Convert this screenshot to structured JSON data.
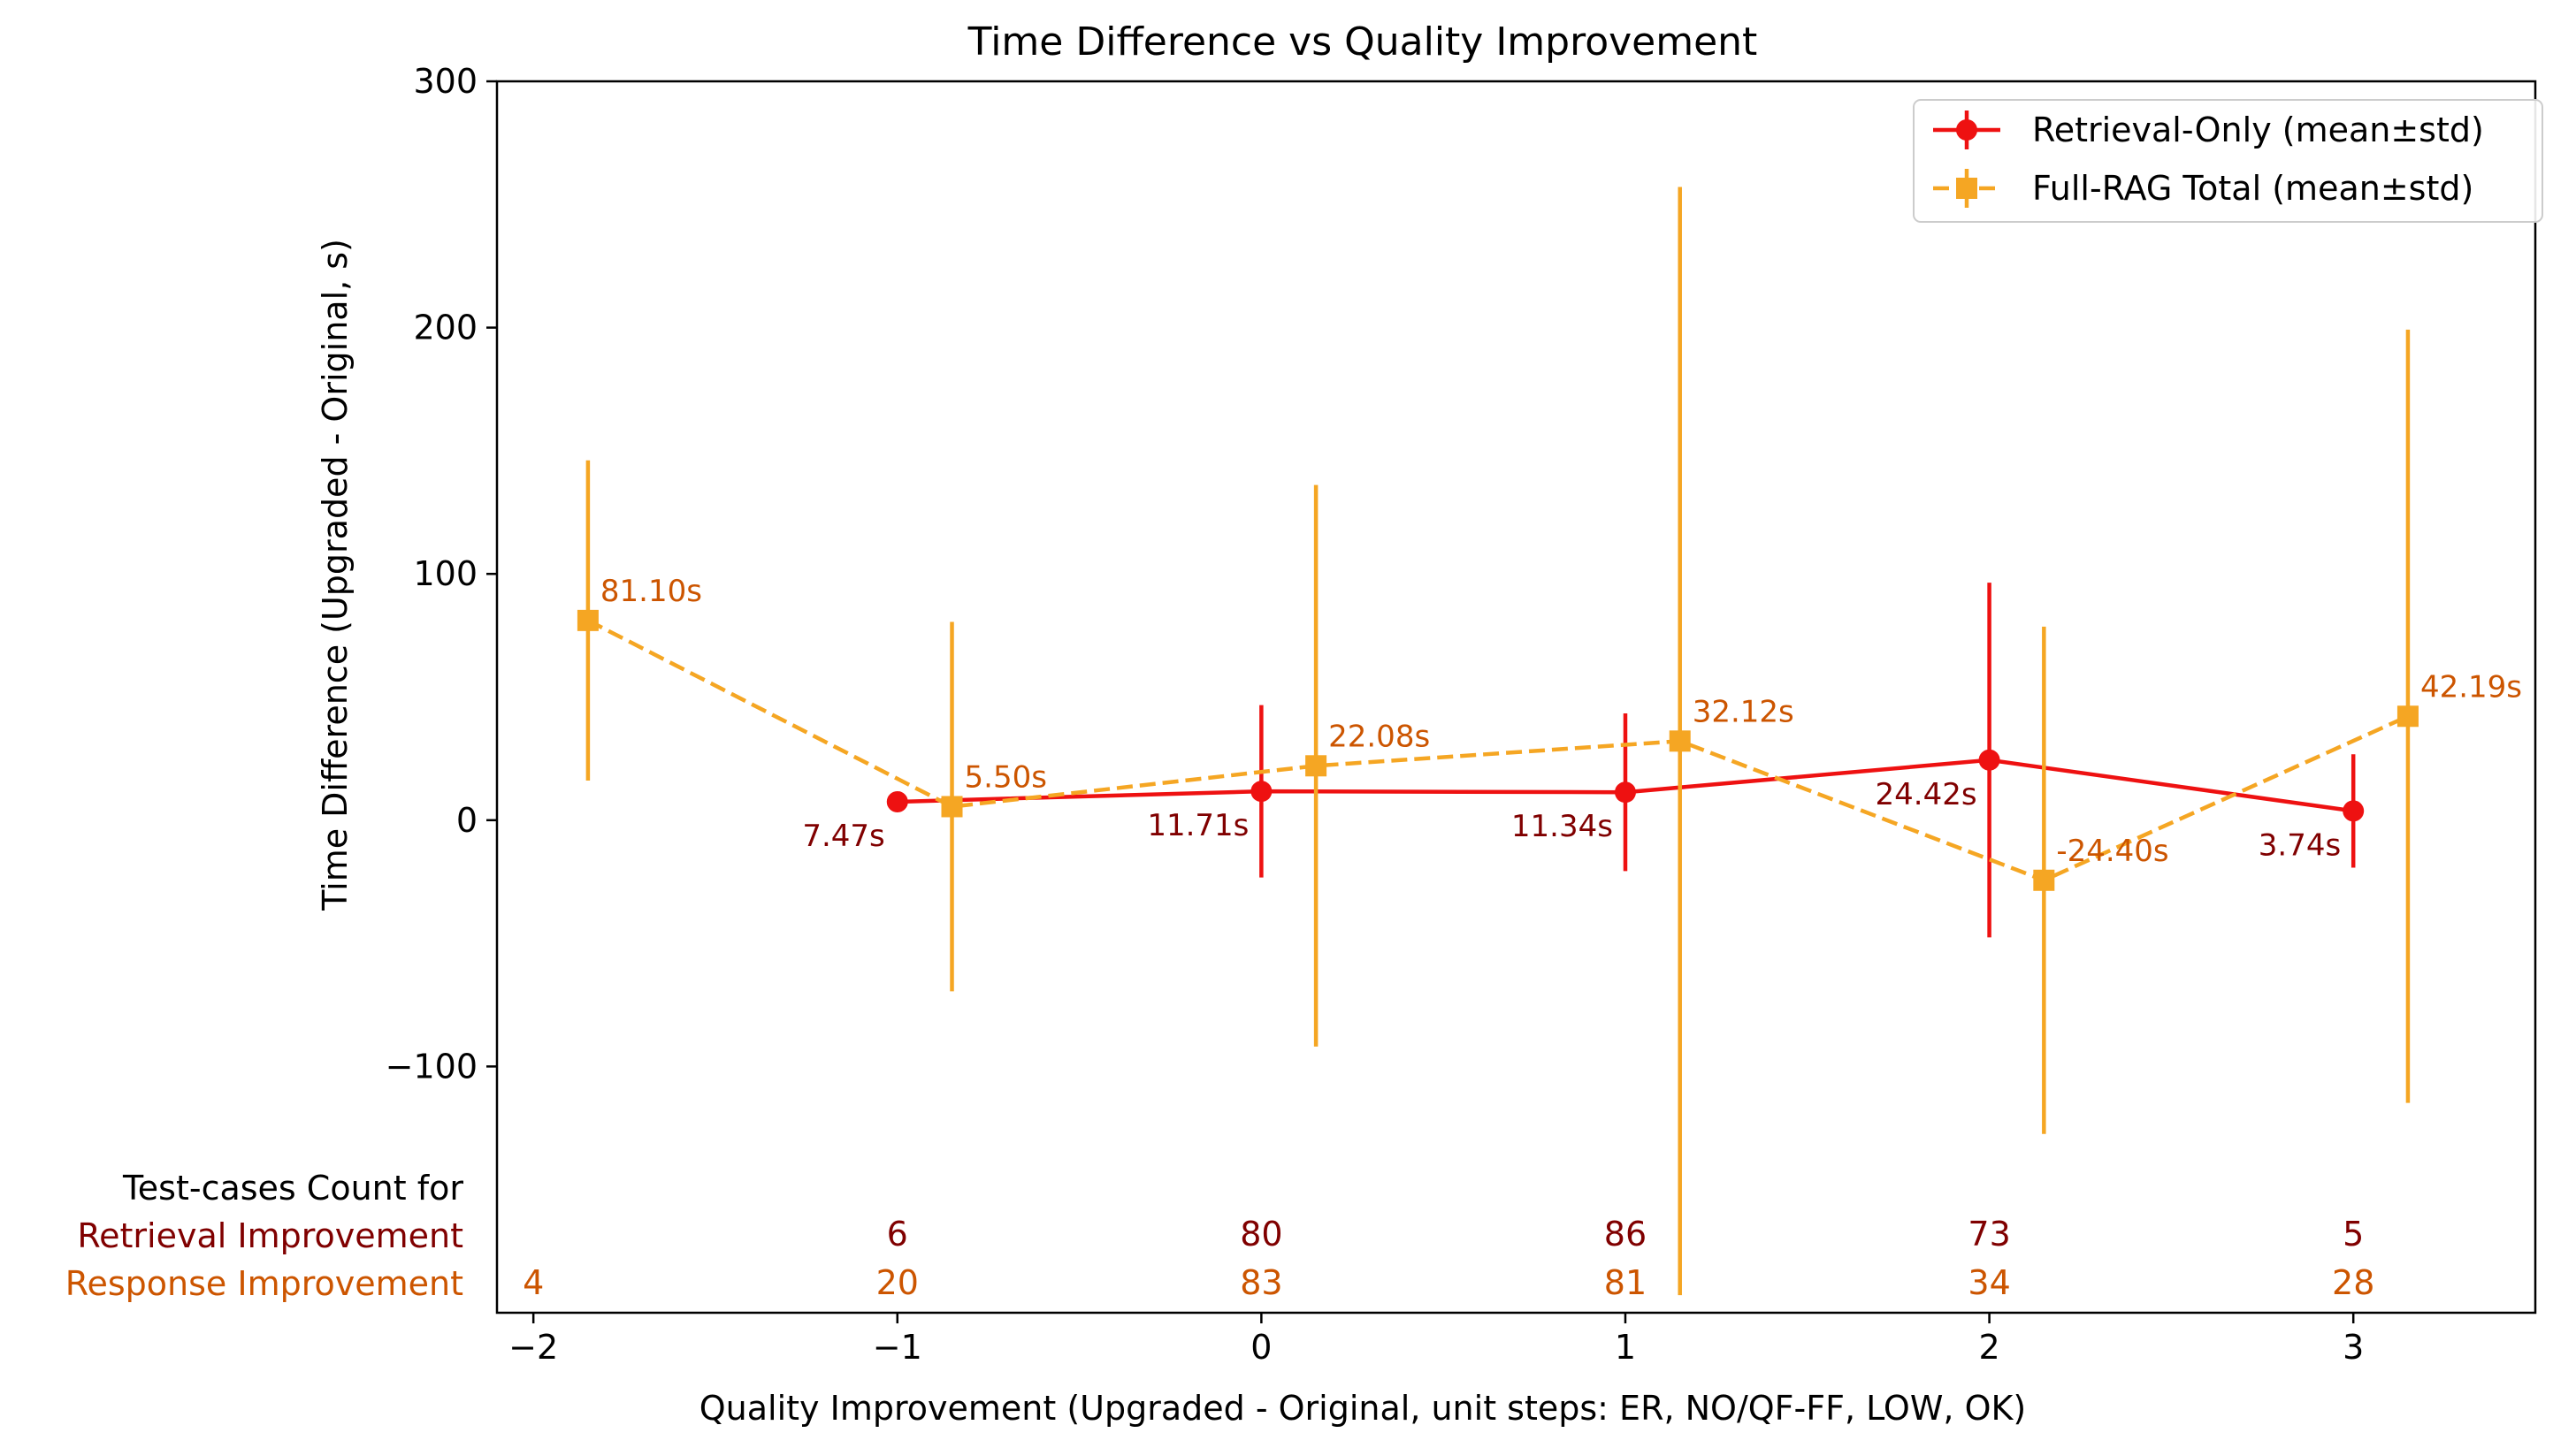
{
  "chart_data": {
    "type": "line",
    "title": "Time Difference vs Quality Improvement",
    "xlabel": "Quality Improvement (Upgraded - Original, unit steps: ER, NO/QF-FF, LOW, OK)",
    "ylabel": "Time Difference (Upgraded - Original, s)",
    "xlim": [
      -2.1,
      3.5
    ],
    "ylim": [
      -200,
      300
    ],
    "x_ticks": [
      -2,
      -1,
      0,
      1,
      2,
      3
    ],
    "x_tick_labels": [
      "−2",
      "−1",
      "0",
      "1",
      "2",
      "3"
    ],
    "y_ticks": [
      -100,
      0,
      100,
      200,
      300
    ],
    "y_tick_labels": [
      "−100",
      "0",
      "100",
      "200",
      "300"
    ],
    "grid": false,
    "legend_position": "top-right",
    "series": [
      {
        "name": "Retrieval-Only (mean±std)",
        "color": "#ee1111",
        "marker": "circle",
        "line_style": "solid",
        "x": [
          -1,
          0,
          1,
          2,
          3
        ],
        "mean": [
          7.47,
          11.71,
          11.34,
          24.42,
          3.74
        ],
        "std": [
          0,
          35,
          32,
          72,
          23
        ],
        "labels": [
          "7.47s",
          "11.71s",
          "11.34s",
          "24.42s",
          "3.74s"
        ],
        "label_color": "#800000"
      },
      {
        "name": "Full-RAG Total (mean±std)",
        "color": "#f5a623",
        "marker": "square",
        "line_style": "dashed",
        "x": [
          -1.85,
          -0.85,
          0.15,
          1.15,
          2.15,
          3.15
        ],
        "mean": [
          81.1,
          5.5,
          22.08,
          32.12,
          -24.4,
          42.19
        ],
        "std": [
          65,
          75,
          114,
          225,
          103,
          157
        ],
        "labels": [
          "81.10s",
          "5.50s",
          "22.08s",
          "32.12s",
          "-24.40s",
          "42.19s"
        ],
        "label_color": "#cc5500"
      }
    ],
    "counts": {
      "heading": "Test-cases Count for",
      "retrieval_label": "Retrieval Improvement",
      "response_label": "Response Improvement",
      "retrieval_color": "#800000",
      "response_color": "#cc5500",
      "retrieval": [
        {
          "x": -1,
          "value": "6"
        },
        {
          "x": 0,
          "value": "80"
        },
        {
          "x": 1,
          "value": "86"
        },
        {
          "x": 2,
          "value": "73"
        },
        {
          "x": 3,
          "value": "5"
        }
      ],
      "response": [
        {
          "x": -2,
          "value": "4"
        },
        {
          "x": -1,
          "value": "20"
        },
        {
          "x": 0,
          "value": "83"
        },
        {
          "x": 1,
          "value": "81"
        },
        {
          "x": 2,
          "value": "34"
        },
        {
          "x": 3,
          "value": "28"
        }
      ]
    }
  }
}
